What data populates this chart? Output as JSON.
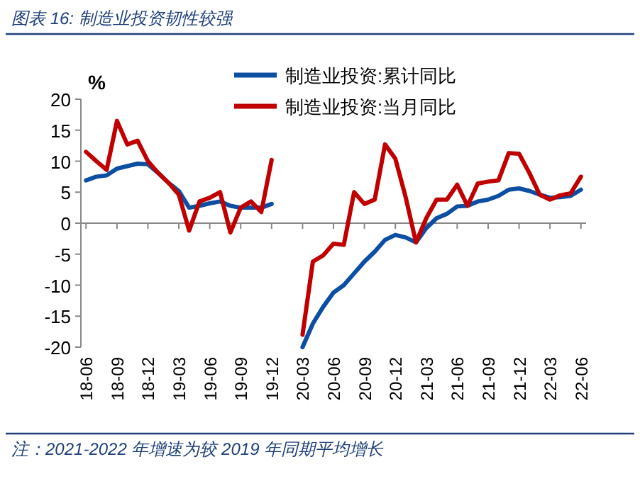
{
  "chart_data": {
    "type": "line",
    "title": "图表 16:  制造业投资韧性较强",
    "ylabel": "%",
    "categories": [
      "18-06",
      null,
      null,
      "18-09",
      null,
      null,
      "18-12",
      null,
      null,
      "19-03",
      null,
      null,
      "19-06",
      null,
      null,
      "19-09",
      null,
      null,
      "19-12",
      null,
      null,
      "20-03",
      null,
      null,
      "20-06",
      null,
      null,
      "20-09",
      null,
      null,
      "20-12",
      null,
      null,
      "21-03",
      null,
      null,
      "21-06",
      null,
      null,
      "21-09",
      null,
      null,
      "21-12",
      null,
      null,
      "22-03",
      null,
      null,
      "22-06"
    ],
    "series": [
      {
        "name": "制造业投资:累计同比",
        "color": "#0b4ea2",
        "values": [
          6.9,
          7.5,
          7.7,
          8.8,
          9.2,
          9.6,
          9.5,
          8.1,
          6.5,
          5.2,
          2.5,
          2.8,
          3.2,
          3.5,
          2.8,
          2.5,
          2.5,
          2.5,
          3.1,
          null,
          null,
          -20,
          -16.2,
          -13.5,
          -11.2,
          -10,
          -8.1,
          -6.2,
          -4.6,
          -2.7,
          -1.9,
          -2.3,
          -3.1,
          -0.8,
          0.8,
          1.5,
          2.7,
          2.8,
          3.5,
          3.8,
          4.4,
          5.4,
          5.6,
          5.2,
          4.6,
          4.1,
          4.2,
          4.4,
          5.4
        ]
      },
      {
        "name": "制造业投资:当月同比",
        "color": "#c00000",
        "values": [
          11.5,
          10,
          8.6,
          16.5,
          12.7,
          13.3,
          10,
          8.1,
          6.5,
          4.6,
          -1.2,
          3.5,
          4.1,
          5,
          -1.5,
          2.5,
          3.5,
          1.8,
          10.2,
          null,
          null,
          -18,
          -6.2,
          -5.2,
          -3.3,
          -3.5,
          5,
          3.1,
          3.8,
          12.7,
          10.4,
          4.2,
          -3.1,
          0.8,
          3.8,
          3.8,
          6.2,
          2.8,
          6.4,
          6.7,
          6.9,
          11.3,
          11.2,
          8.1,
          4.6,
          3.8,
          4.5,
          4.8,
          7.5
        ]
      }
    ],
    "ylim": [
      -20,
      20
    ],
    "yticks": [
      -20,
      -15,
      -10,
      -5,
      0,
      5,
      10,
      15,
      20
    ],
    "legend": "top",
    "annotations": [
      "注：2021-2022 年增速为较 2019 年同期平均增长"
    ]
  }
}
